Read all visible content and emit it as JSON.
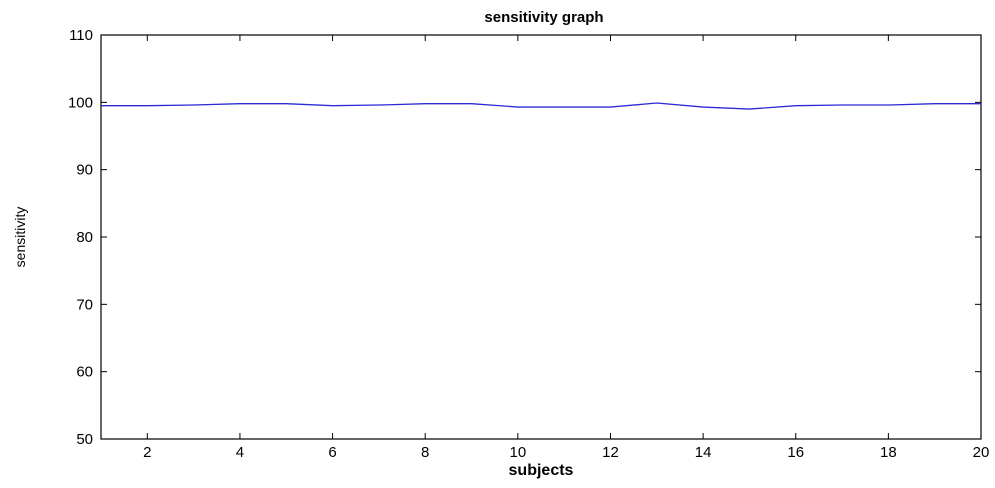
{
  "chart_data": {
    "type": "line",
    "title": "sensitivity graph",
    "xlabel": "subjects",
    "ylabel": "sensitivity",
    "xlim": [
      1,
      20
    ],
    "ylim": [
      50,
      110
    ],
    "xticks": [
      2,
      4,
      6,
      8,
      10,
      12,
      14,
      16,
      18,
      20
    ],
    "yticks": [
      50,
      60,
      70,
      80,
      90,
      100,
      110
    ],
    "grid": false,
    "legend": "none",
    "series": [
      {
        "color": "#2b2bd6",
        "x": [
          1,
          2,
          3,
          4,
          5,
          6,
          7,
          8,
          9,
          10,
          11,
          12,
          13,
          14,
          15,
          16,
          17,
          18,
          19,
          20
        ],
        "values": [
          99.5,
          99.5,
          99.6,
          99.8,
          99.8,
          99.5,
          99.6,
          99.8,
          99.8,
          99.3,
          99.3,
          99.3,
          99.9,
          99.3,
          99.0,
          99.5,
          99.6,
          99.6,
          99.8,
          99.8
        ]
      }
    ]
  }
}
